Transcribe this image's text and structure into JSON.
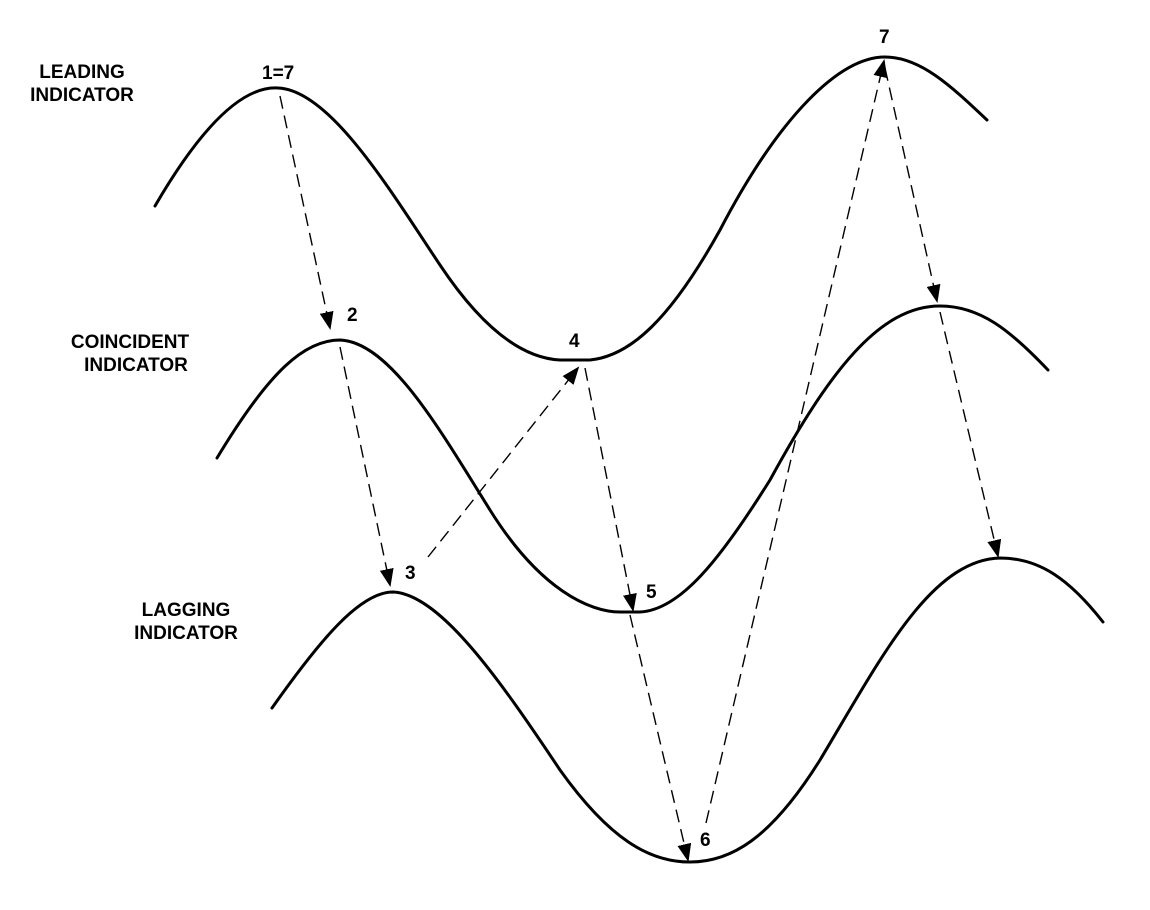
{
  "indicators": {
    "leading": {
      "line1": "LEADING",
      "line2": "INDICATOR"
    },
    "coincident": {
      "line1": "COINCIDENT",
      "line2": "INDICATOR"
    },
    "lagging": {
      "line1": "LAGGING",
      "line2": "INDICATOR"
    }
  },
  "points": {
    "p1": "1=7",
    "p2": "2",
    "p3": "3",
    "p4": "4",
    "p5": "5",
    "p6": "6",
    "p7": "7"
  },
  "colors": {
    "ink": "#000000",
    "background": "#ffffff"
  }
}
